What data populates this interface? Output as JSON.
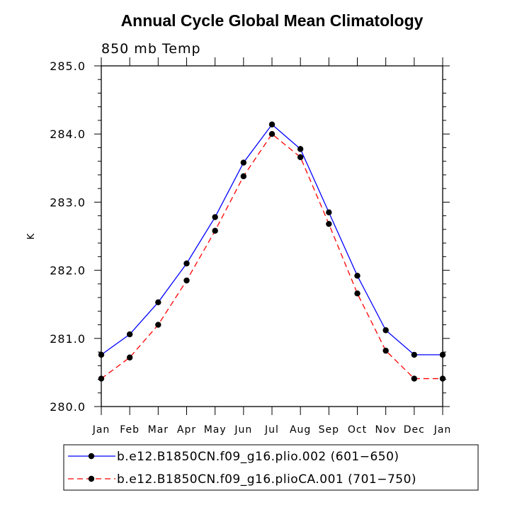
{
  "chart_data": {
    "type": "line",
    "title": "Annual Cycle Global Mean Climatology",
    "subtitle": "850 mb Temp",
    "ylabel": "K",
    "xlabel": "",
    "categories": [
      "Jan",
      "Feb",
      "Mar",
      "Apr",
      "May",
      "Jun",
      "Jul",
      "Aug",
      "Sep",
      "Oct",
      "Nov",
      "Dec",
      "Jan"
    ],
    "ylim": [
      280.0,
      285.0
    ],
    "yticks": [
      "280.0",
      "281.0",
      "282.0",
      "283.0",
      "284.0",
      "285.0"
    ],
    "grid": false,
    "legend_position": "bottom",
    "series": [
      {
        "name": "b.e12.B1850CN.f09_g16.plio.002 (601−650)",
        "color": "#0000ff",
        "dash": "solid",
        "marker": "filled-circle",
        "values": [
          280.76,
          281.06,
          281.53,
          282.1,
          282.78,
          283.58,
          284.14,
          283.78,
          282.85,
          281.92,
          281.12,
          280.76,
          280.76
        ]
      },
      {
        "name": "b.e12.B1850CN.f09_g16.plioCA.001 (701−750)",
        "color": "#ff0000",
        "dash": "dashed",
        "marker": "filled-circle",
        "values": [
          280.41,
          280.72,
          281.2,
          281.85,
          282.58,
          283.38,
          284.0,
          283.66,
          282.68,
          281.66,
          280.82,
          280.41,
          280.41
        ]
      }
    ]
  }
}
